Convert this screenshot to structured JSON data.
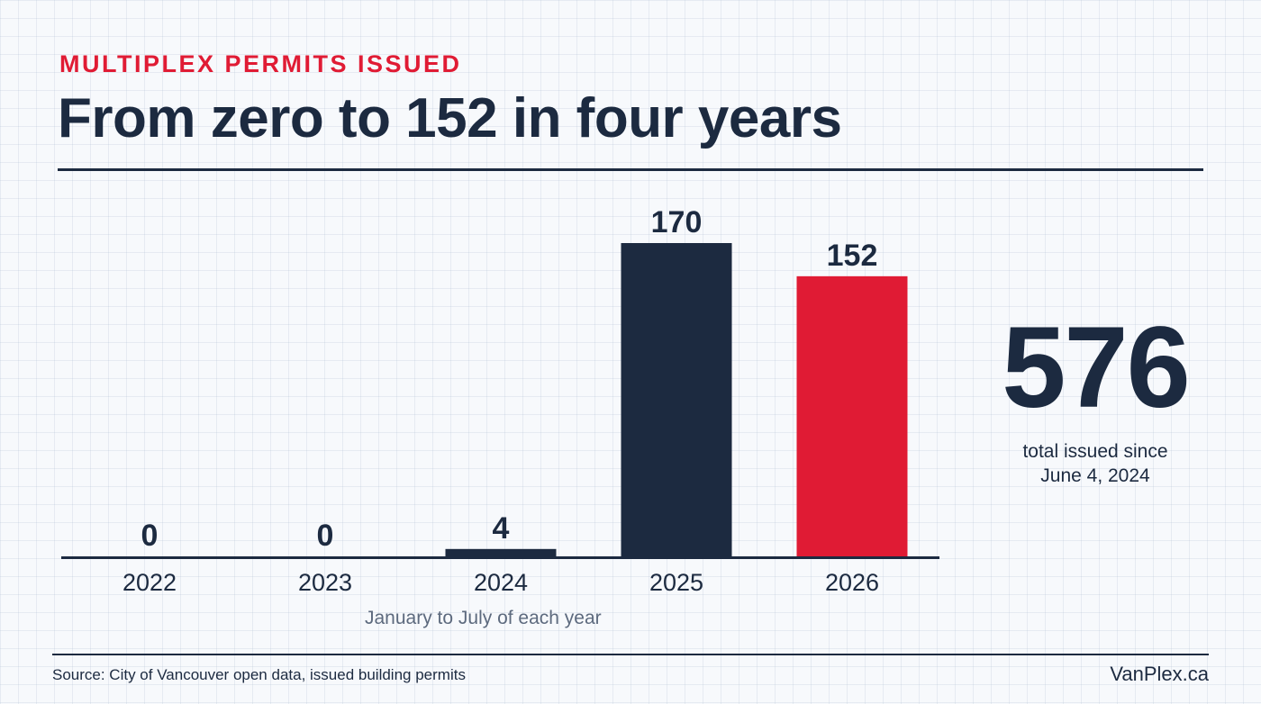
{
  "header": {
    "eyebrow": "MULTIPLEX PERMITS ISSUED",
    "title": "From zero to 152 in four years"
  },
  "chart_data": {
    "type": "bar",
    "categories": [
      "2022",
      "2023",
      "2024",
      "2025",
      "2026"
    ],
    "values": [
      0,
      0,
      4,
      170,
      152
    ],
    "data_labels": [
      "0",
      "0",
      "4",
      "170",
      "152"
    ],
    "highlight_index": 4,
    "bar_color": "#1c2a40",
    "highlight_color": "#e01b34",
    "note": "January to July of each year",
    "ylim": [
      0,
      170
    ],
    "grid": false
  },
  "stat": {
    "value": "576",
    "label_line1": "total issued since",
    "label_line2": "June 4, 2024"
  },
  "footer": {
    "source": "Source: City of Vancouver open data, issued building permits",
    "brand": "VanPlex.ca"
  },
  "colors": {
    "navy": "#1c2a40",
    "red": "#e01b34",
    "muted": "#5d6a7e"
  }
}
